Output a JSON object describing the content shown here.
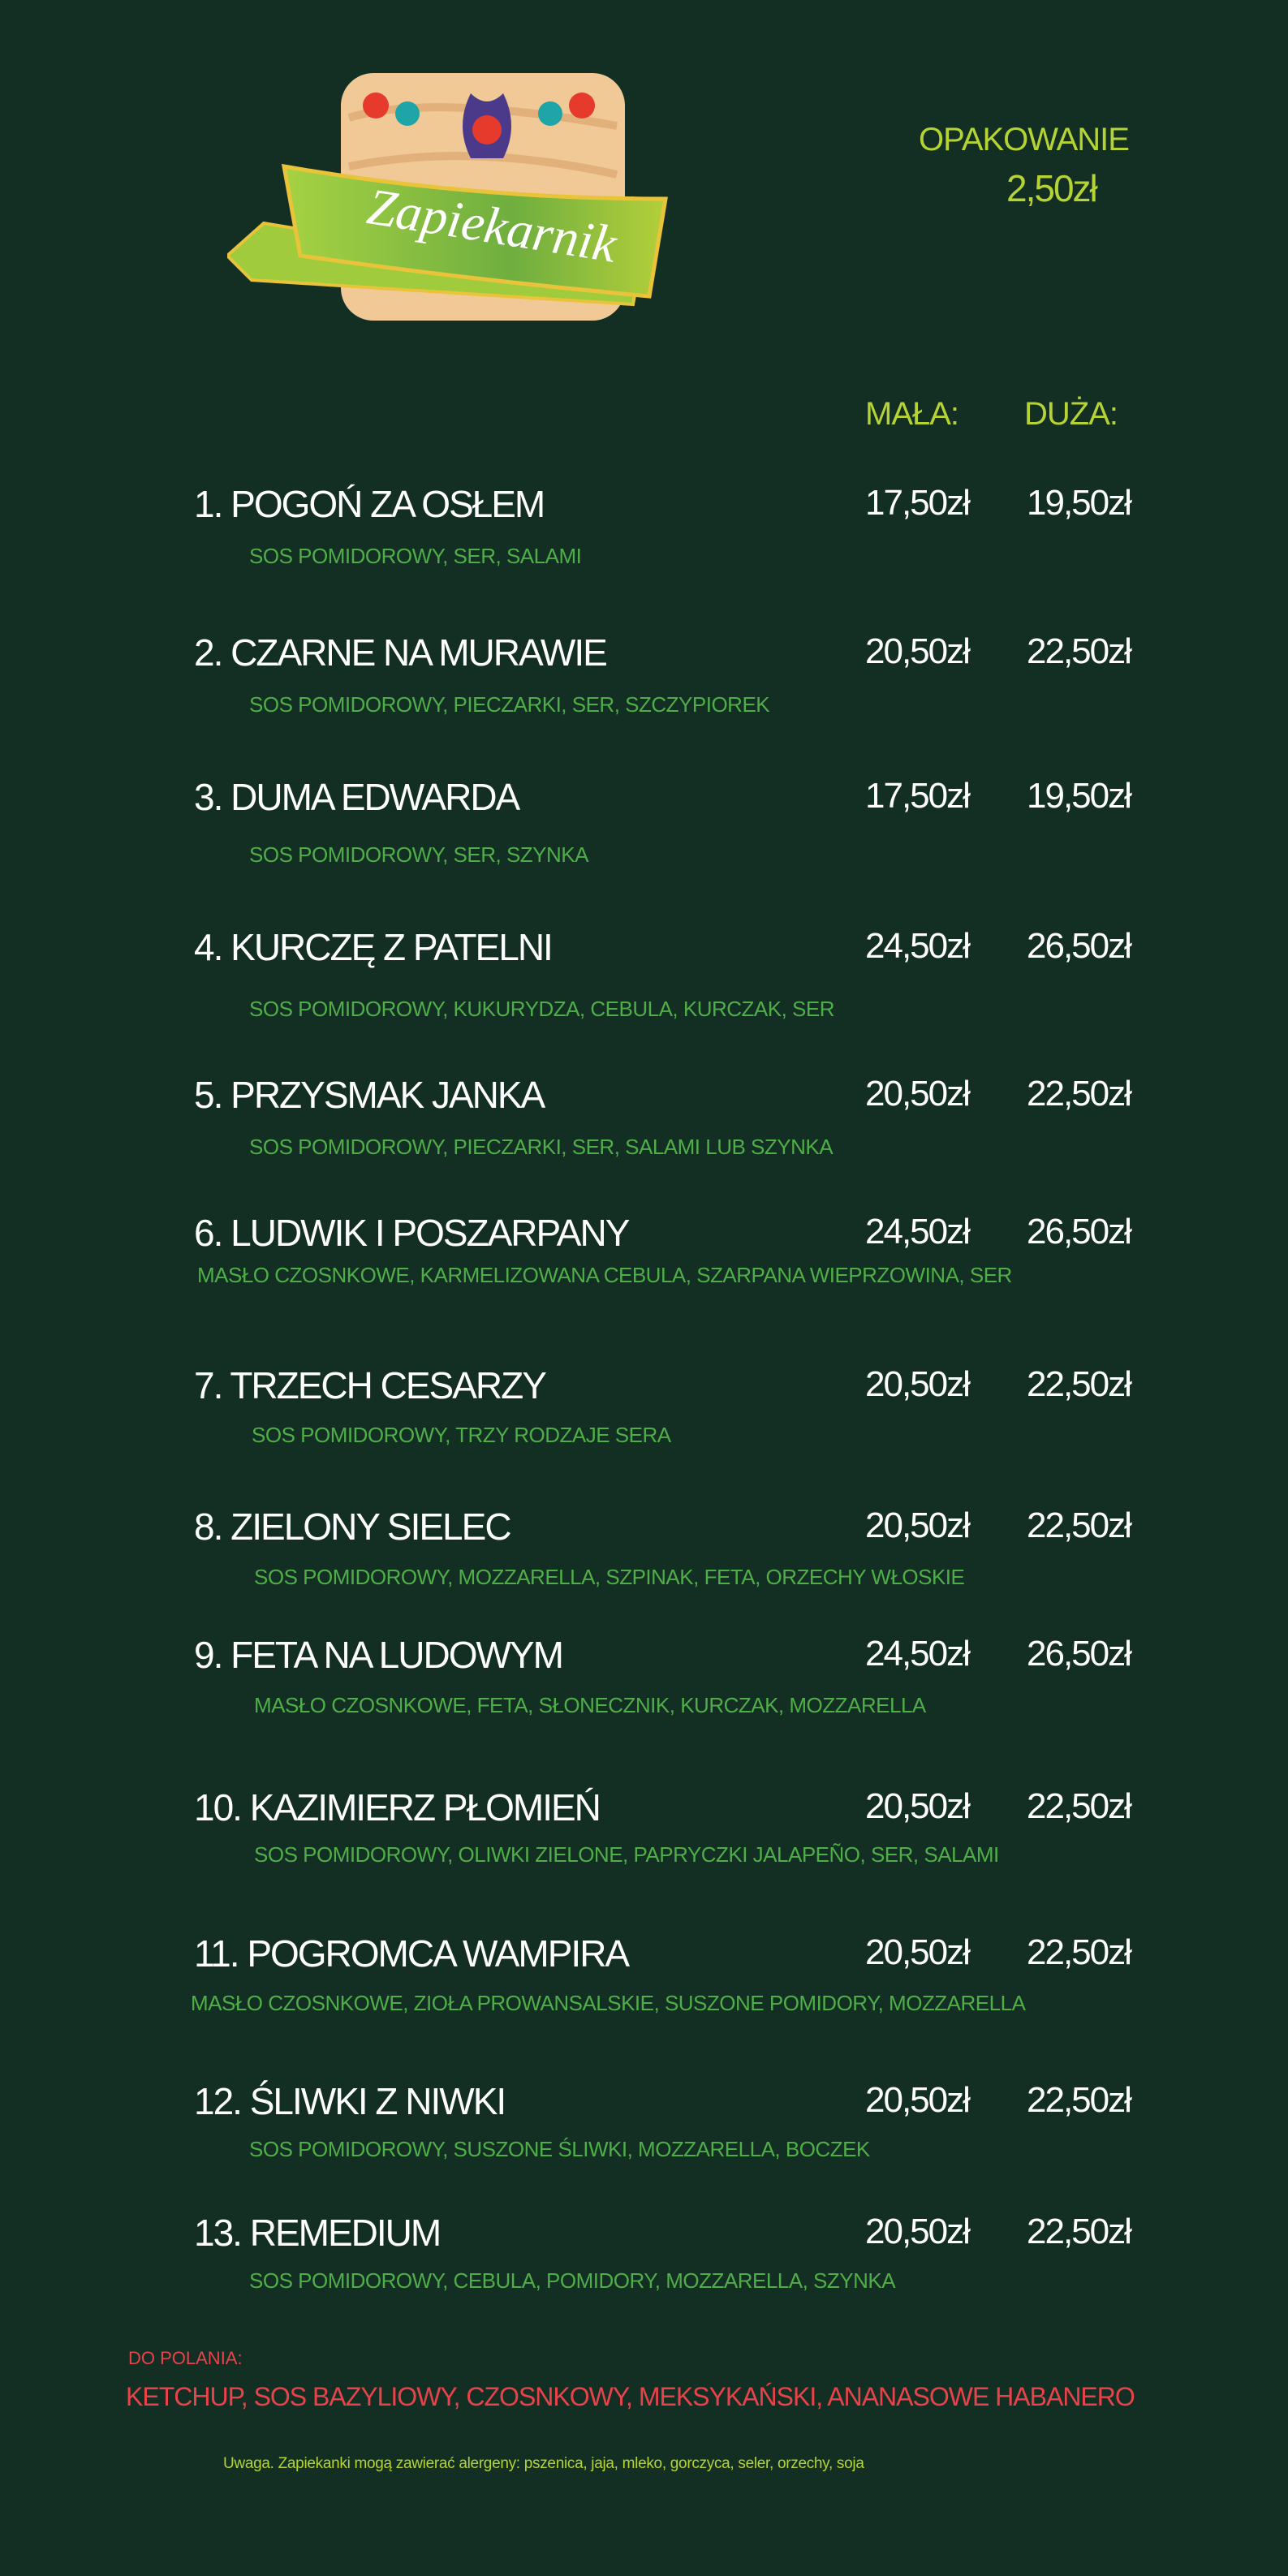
{
  "logo": {
    "text": "Zapiekarnik"
  },
  "packaging": {
    "label": "OPAKOWANIE",
    "price": "2,50zł"
  },
  "columns": {
    "small": "MAŁA:",
    "large": "DUŻA:"
  },
  "menu": [
    {
      "name": "1. POGOŃ ZA OSŁEM",
      "desc": "SOS POMIDOROWY, SER, SALAMI",
      "small": "17,50zł",
      "large": "19,50zł"
    },
    {
      "name": "2. CZARNE NA MURAWIE",
      "desc": "SOS POMIDOROWY, PIECZARKI, SER, SZCZYPIOREK",
      "small": "20,50zł",
      "large": "22,50zł"
    },
    {
      "name": "3. DUMA EDWARDA",
      "desc": "SOS POMIDOROWY, SER, SZYNKA",
      "small": "17,50zł",
      "large": "19,50zł"
    },
    {
      "name": "4. KURCZĘ Z PATELNI",
      "desc": "SOS POMIDOROWY, KUKURYDZA, CEBULA, KURCZAK, SER",
      "small": "24,50zł",
      "large": "26,50zł"
    },
    {
      "name": "5. PRZYSMAK JANKA",
      "desc": "SOS POMIDOROWY, PIECZARKI, SER, SALAMI LUB SZYNKA",
      "small": "20,50zł",
      "large": "22,50zł"
    },
    {
      "name": "6. LUDWIK  I  POSZARPANY",
      "desc": "MASŁO CZOSNKOWE, KARMELIZOWANA CEBULA, SZARPANA WIEPRZOWINA, SER",
      "small": "24,50zł",
      "large": "26,50zł"
    },
    {
      "name": "7. TRZECH CESARZY",
      "desc": "SOS POMIDOROWY, TRZY RODZAJE SERA",
      "small": "20,50zł",
      "large": "22,50zł"
    },
    {
      "name": "8. ZIELONY SIELEC",
      "desc": "SOS POMIDOROWY, MOZZARELLA, SZPINAK, FETA, ORZECHY WŁOSKIE",
      "small": "20,50zł",
      "large": "22,50zł"
    },
    {
      "name": "9. FETA NA LUDOWYM",
      "desc": "MASŁO CZOSNKOWE,  FETA, SŁONECZNIK, KURCZAK, MOZZARELLA",
      "small": "24,50zł",
      "large": "26,50zł"
    },
    {
      "name": "10. KAZIMIERZ PŁOMIEŃ",
      "desc": "SOS POMIDOROWY, OLIWKI ZIELONE, PAPRYCZKI JALAPEÑO, SER, SALAMI",
      "small": "20,50zł",
      "large": "22,50zł"
    },
    {
      "name": "11. POGROMCA WAMPIRA",
      "desc": "MASŁO CZOSNKOWE, ZIOŁA PROWANSALSKIE, SUSZONE POMIDORY, MOZZARELLA",
      "small": "20,50zł",
      "large": "22,50zł"
    },
    {
      "name": "12. ŚLIWKI Z NIWKI",
      "desc": "SOS POMIDOROWY, SUSZONE ŚLIWKI, MOZZARELLA, BOCZEK",
      "small": "20,50zł",
      "large": "22,50zł"
    },
    {
      "name": "13. REMEDIUM",
      "desc": "SOS POMIDOROWY, CEBULA, POMIDORY, MOZZARELLA, SZYNKA",
      "small": "20,50zł",
      "large": "22,50zł"
    }
  ],
  "toppings": {
    "label": "DO POLANIA:",
    "list": "KETCHUP, SOS BAZYLIOWY, CZOSNKOWY, MEKSYKAŃSKI, ANANASOWE HABANERO"
  },
  "allergens": "Uwaga. Zapiekanki mogą zawierać alergeny: pszenica, jaja, mleko, gorczyca, seler, orzechy, soja",
  "colors": {
    "background": "#132f24",
    "accent": "#b5d334",
    "ingredients": "#4fae48",
    "toppings": "#e8424a"
  }
}
